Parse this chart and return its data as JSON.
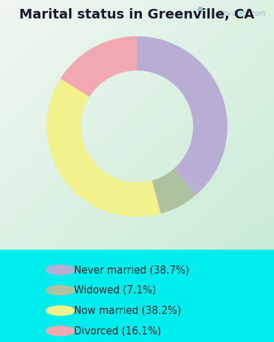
{
  "title": "Marital status in Greenville, CA",
  "slices": [
    38.7,
    7.1,
    38.2,
    16.1
  ],
  "labels": [
    "Never married (38.7%)",
    "Widowed (7.1%)",
    "Now married (38.2%)",
    "Divorced (16.1%)"
  ],
  "colors": [
    "#b8aed4",
    "#afc2a0",
    "#f2f28c",
    "#f2a8b0"
  ],
  "outer_bg": "#00eded",
  "chart_bg_color1": "#e8f5f0",
  "chart_bg_color2": "#c8e8d8",
  "donut_width": 0.38,
  "start_angle": 90,
  "title_fontsize": 14,
  "legend_fontsize": 10.5,
  "watermark": "City-Data.com"
}
